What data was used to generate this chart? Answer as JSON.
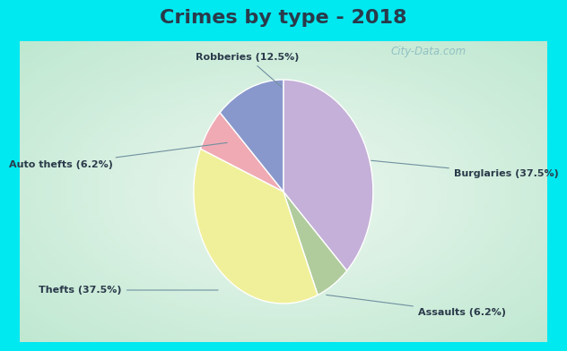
{
  "title": "Crimes by type - 2018",
  "slices": [
    {
      "label": "Burglaries (37.5%)",
      "value": 37.5,
      "color": "#c4b0d8"
    },
    {
      "label": "Assaults (6.2%)",
      "value": 6.25,
      "color": "#b0cc9c"
    },
    {
      "label": "Thefts (37.5%)",
      "value": 37.5,
      "color": "#f0f09a"
    },
    {
      "label": "Auto thefts (6.2%)",
      "value": 6.25,
      "color": "#f0aab4"
    },
    {
      "label": "Robberies (12.5%)",
      "value": 12.5,
      "color": "#8898cc"
    }
  ],
  "bg_color_outer": "#00e8f0",
  "bg_color_inner_edge": "#c0e8d0",
  "bg_color_inner_center": "#e8f8f0",
  "title_fontsize": 16,
  "label_fontsize": 8,
  "watermark": "City-Data.com",
  "title_color": "#2a3a4a",
  "label_color": "#2a3a4a"
}
